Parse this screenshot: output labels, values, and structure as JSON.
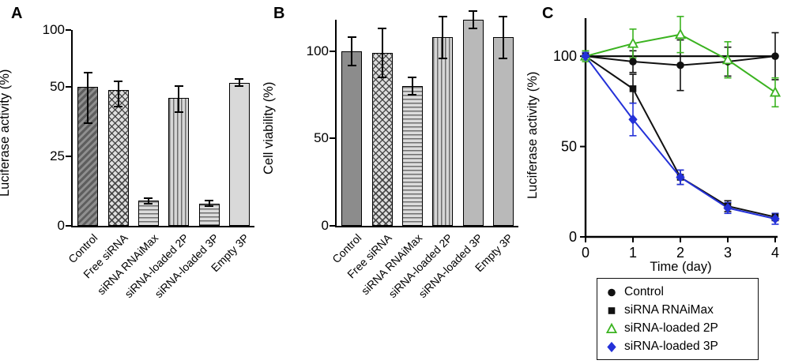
{
  "panels": {
    "a": {
      "label": "A"
    },
    "b": {
      "label": "B"
    },
    "c": {
      "label": "C"
    }
  },
  "chart_data": [
    {
      "id": "A",
      "type": "bar",
      "ylabel": "Luciferase activity (%)",
      "categories": [
        "Control",
        "Free siRNA",
        "siRNA RNAiMax",
        "siRNA-loaded 2P",
        "siRNA-loaded 3P",
        "Empty 3P"
      ],
      "values": [
        50,
        49,
        9,
        46,
        8,
        54
      ],
      "errors": [
        13,
        6,
        1,
        5,
        1,
        3
      ],
      "yticks": [
        0,
        25,
        50,
        100
      ],
      "ylim": [
        0,
        100
      ],
      "yscale": [
        [
          0,
          0
        ],
        [
          50,
          0.708
        ],
        [
          100,
          1
        ]
      ],
      "bar_styles": [
        "diag-dark",
        "crosshatch",
        "hlines",
        "vlines",
        "hlines",
        "plain-light"
      ]
    },
    {
      "id": "B",
      "type": "bar",
      "ylabel": "Cell viability (%)",
      "categories": [
        "Control",
        "Free siRNA",
        "siRNA RNAiMax",
        "siRNA-loaded 2P",
        "siRNA-loaded 3P",
        "Empty 3P"
      ],
      "values": [
        100,
        99,
        80,
        108,
        118,
        108
      ],
      "errors": [
        8,
        14,
        5,
        12,
        5,
        12
      ],
      "yticks": [
        0,
        50,
        100
      ],
      "ylim": [
        0,
        118
      ],
      "yscale": [
        [
          0,
          0
        ],
        [
          118,
          1
        ]
      ],
      "bar_styles": [
        "plain-dark",
        "crosshatch",
        "hlines",
        "vlines",
        "plain-mid",
        "plain-mid"
      ]
    },
    {
      "id": "C",
      "type": "line",
      "ylabel": "Luciferase activity (%)",
      "xlabel": "Time (day)",
      "x": [
        0,
        1,
        2,
        3,
        4
      ],
      "xticks": [
        0,
        1,
        2,
        3,
        4
      ],
      "yticks": [
        0,
        50,
        100
      ],
      "ylim": [
        0,
        118
      ],
      "refline": 100,
      "legend_position": "below",
      "series": [
        {
          "name": "Control",
          "marker": "circle",
          "color": "#111111",
          "values": [
            100,
            97,
            95,
            97,
            100
          ],
          "errors": [
            2,
            6,
            14,
            8,
            13
          ]
        },
        {
          "name": "siRNA RNAiMax",
          "marker": "square",
          "color": "#111111",
          "values": [
            100,
            82,
            33,
            17,
            11
          ],
          "errors": [
            2,
            8,
            4,
            3,
            2
          ]
        },
        {
          "name": "siRNA-loaded 2P",
          "marker": "triangle-open",
          "color": "#3bb320",
          "values": [
            100,
            107,
            112,
            98,
            80
          ],
          "errors": [
            3,
            8,
            10,
            10,
            8
          ]
        },
        {
          "name": "siRNA-loaded 3P",
          "marker": "diamond",
          "color": "#2431d8",
          "values": [
            100,
            65,
            33,
            16,
            10
          ],
          "errors": [
            2,
            9,
            4,
            3,
            3
          ]
        }
      ]
    }
  ]
}
